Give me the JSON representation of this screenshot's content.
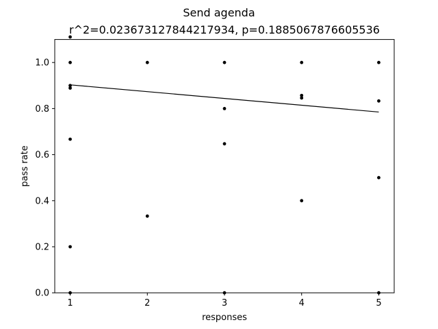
{
  "chart_data": {
    "type": "scatter",
    "title": "Send agenda",
    "subtitle": "r^2=0.023673127844217934, p=0.1885067876605536",
    "xlabel": "responses",
    "ylabel": "pass rate",
    "xlim": [
      0.8,
      5.2
    ],
    "ylim": [
      0.0,
      1.1
    ],
    "xticks": [
      1,
      2,
      3,
      4,
      5
    ],
    "yticks": [
      0.0,
      0.2,
      0.4,
      0.6,
      0.8,
      1.0
    ],
    "ytick_labels": [
      "0.0",
      "0.2",
      "0.4",
      "0.6",
      "0.8",
      "1.0"
    ],
    "grid": false,
    "points": [
      {
        "x": 1,
        "y": 1.111
      },
      {
        "x": 1,
        "y": 1.0
      },
      {
        "x": 1,
        "y": 0.9
      },
      {
        "x": 1,
        "y": 0.889
      },
      {
        "x": 1,
        "y": 0.667
      },
      {
        "x": 1,
        "y": 0.2
      },
      {
        "x": 1,
        "y": 0.0
      },
      {
        "x": 2,
        "y": 1.0
      },
      {
        "x": 2,
        "y": 0.333
      },
      {
        "x": 3,
        "y": 1.0
      },
      {
        "x": 3,
        "y": 0.8
      },
      {
        "x": 3,
        "y": 0.647
      },
      {
        "x": 3,
        "y": 0.0
      },
      {
        "x": 4,
        "y": 1.0
      },
      {
        "x": 4,
        "y": 0.857
      },
      {
        "x": 4,
        "y": 0.846
      },
      {
        "x": 4,
        "y": 0.4
      },
      {
        "x": 5,
        "y": 1.0
      },
      {
        "x": 5,
        "y": 0.833
      },
      {
        "x": 5,
        "y": 0.5
      },
      {
        "x": 5,
        "y": 0.0
      }
    ],
    "fit_line": {
      "x": [
        1,
        5
      ],
      "y": [
        0.903,
        0.785
      ]
    },
    "colors": {
      "points": "#000000",
      "line": "#000000",
      "axes": "#000000"
    }
  }
}
